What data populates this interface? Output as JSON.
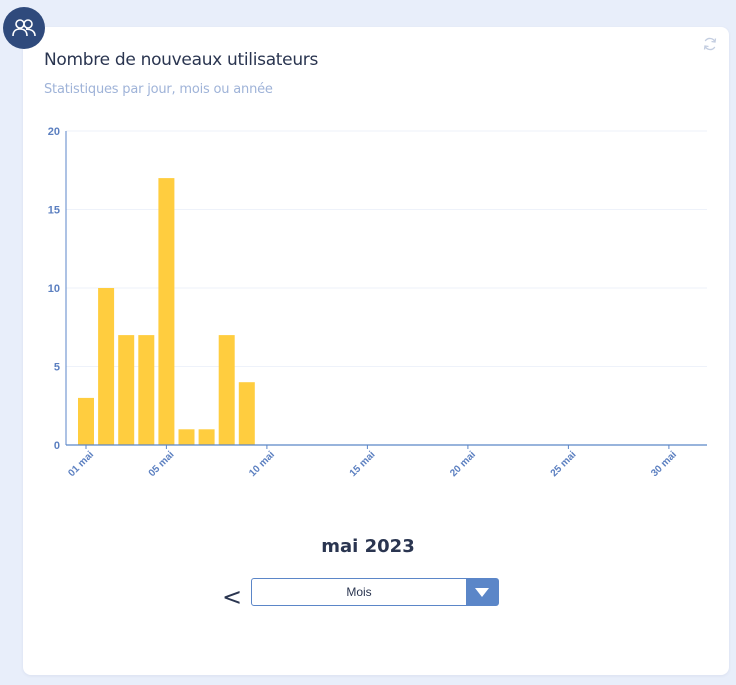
{
  "header": {
    "title": "Nombre de nouveaux utilisateurs",
    "subtitle": "Statistiques par jour, mois ou année",
    "avatar_icon": "users-icon",
    "refresh_icon": "refresh-icon"
  },
  "colors": {
    "bar": "#ffcd3f",
    "axis": "#5b86c8",
    "tick_label": "#5b7fc0",
    "grid": "#eef2fa",
    "avatar_bg": "#2f4a7c"
  },
  "chart_data": {
    "type": "bar",
    "title": "",
    "xlabel": "",
    "ylabel": "",
    "ylim": [
      0,
      20
    ],
    "yticks": [
      0,
      5,
      10,
      15,
      20
    ],
    "grid": true,
    "categories": [
      "01 mai",
      "02 mai",
      "03 mai",
      "04 mai",
      "05 mai",
      "06 mai",
      "07 mai",
      "08 mai",
      "09 mai",
      "10 mai",
      "11 mai",
      "12 mai",
      "13 mai",
      "14 mai",
      "15 mai",
      "16 mai",
      "17 mai",
      "18 mai",
      "19 mai",
      "20 mai",
      "21 mai",
      "22 mai",
      "23 mai",
      "24 mai",
      "25 mai",
      "26 mai",
      "27 mai",
      "28 mai",
      "29 mai",
      "30 mai",
      "31 mai"
    ],
    "values": [
      3,
      10,
      7,
      7,
      17,
      1,
      1,
      7,
      4,
      0,
      0,
      0,
      0,
      0,
      0,
      0,
      0,
      0,
      0,
      0,
      0,
      0,
      0,
      0,
      0,
      0,
      0,
      0,
      0,
      0,
      0
    ],
    "xtick_labels": [
      "01 mai",
      "05 mai",
      "10 mai",
      "15 mai",
      "20 mai",
      "25 mai",
      "30 mai"
    ]
  },
  "footer": {
    "period_label": "mai 2023",
    "prev_label": "<",
    "select_value": "Mois",
    "select_arrow_icon": "caret-down-icon"
  }
}
